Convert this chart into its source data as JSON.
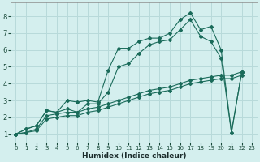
{
  "title": "",
  "xlabel": "Humidex (Indice chaleur)",
  "bg_color": "#d4efee",
  "grid_color": "#b8dada",
  "line_color": "#1a6b5a",
  "xlim": [
    -0.5,
    23.5
  ],
  "ylim": [
    0.5,
    8.8
  ],
  "xticks": [
    0,
    1,
    2,
    3,
    4,
    5,
    6,
    7,
    8,
    9,
    10,
    11,
    12,
    13,
    14,
    15,
    16,
    17,
    18,
    19,
    20,
    21,
    22,
    23
  ],
  "yticks": [
    1,
    2,
    3,
    4,
    5,
    6,
    7,
    8
  ],
  "s1x": [
    0,
    1,
    2,
    3,
    4,
    5,
    6,
    7,
    8,
    9,
    10,
    11,
    12,
    13,
    14,
    15,
    16,
    17,
    18,
    19,
    20,
    21,
    22
  ],
  "s1y": [
    1.0,
    1.3,
    1.5,
    2.4,
    2.3,
    3.0,
    2.9,
    3.0,
    2.9,
    4.8,
    6.1,
    6.1,
    6.5,
    6.7,
    6.7,
    7.0,
    7.8,
    8.2,
    7.2,
    7.4,
    6.0,
    1.1,
    4.7
  ],
  "s2x": [
    0,
    1,
    2,
    3,
    4,
    5,
    6,
    7,
    8,
    9,
    10,
    11,
    12,
    13,
    14,
    15,
    16,
    17,
    18,
    19,
    20,
    21,
    22
  ],
  "s2y": [
    1.0,
    1.3,
    1.5,
    2.4,
    2.3,
    2.5,
    2.3,
    2.8,
    2.8,
    3.5,
    5.0,
    5.2,
    5.8,
    6.3,
    6.5,
    6.6,
    7.2,
    7.8,
    6.8,
    6.5,
    5.5,
    1.1,
    4.7
  ],
  "s3x": [
    0,
    1,
    2,
    3,
    4,
    5,
    6,
    7,
    8,
    9,
    10,
    11,
    12,
    13,
    14,
    15,
    16,
    17,
    18,
    19,
    20,
    21,
    22
  ],
  "s3y": [
    1.0,
    1.1,
    1.3,
    2.1,
    2.2,
    2.3,
    2.3,
    2.5,
    2.6,
    2.8,
    3.0,
    3.2,
    3.4,
    3.6,
    3.7,
    3.8,
    4.0,
    4.2,
    4.3,
    4.4,
    4.5,
    4.5,
    4.7
  ],
  "s4x": [
    0,
    1,
    2,
    3,
    4,
    5,
    6,
    7,
    8,
    9,
    10,
    11,
    12,
    13,
    14,
    15,
    16,
    17,
    18,
    19,
    20,
    21,
    22
  ],
  "s4y": [
    1.0,
    1.1,
    1.2,
    1.9,
    2.0,
    2.1,
    2.1,
    2.3,
    2.4,
    2.6,
    2.8,
    3.0,
    3.2,
    3.4,
    3.5,
    3.6,
    3.8,
    4.0,
    4.1,
    4.2,
    4.3,
    4.3,
    4.5
  ]
}
